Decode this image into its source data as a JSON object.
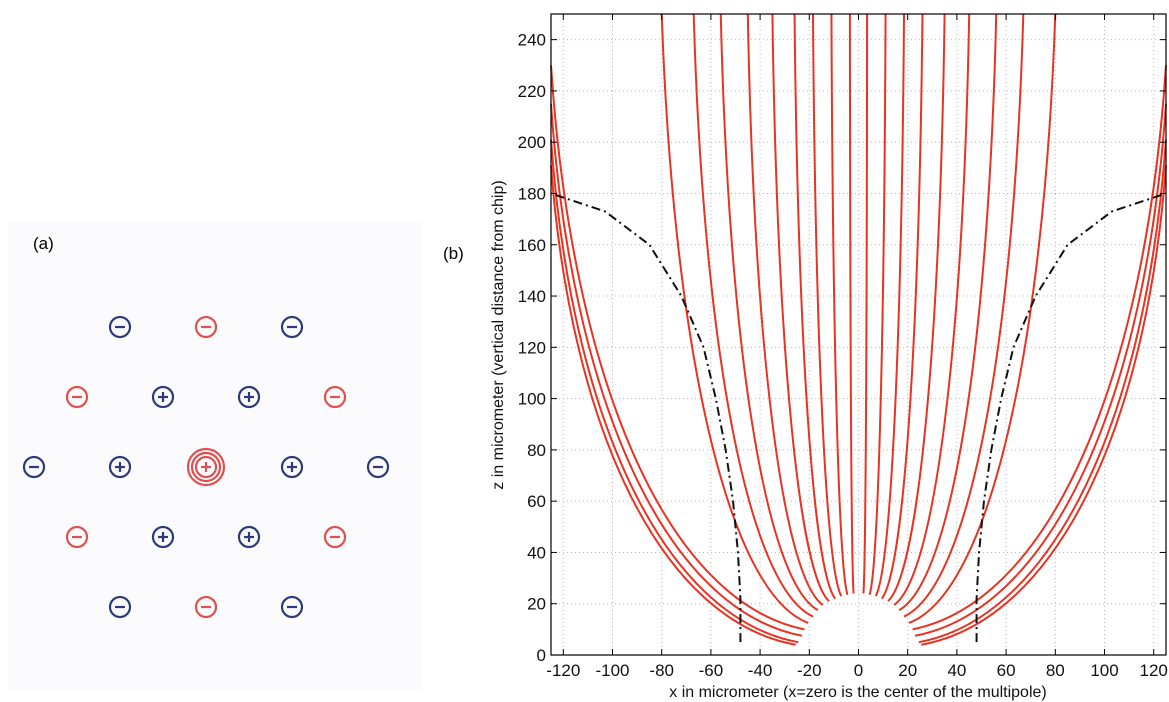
{
  "panel_a": {
    "label": "(a)",
    "colors": {
      "blue": "#2e3a78",
      "red": "#e0504e"
    },
    "electrodes": [
      {
        "sign": "−",
        "color": "blue",
        "col": 1,
        "row": 0
      },
      {
        "sign": "−",
        "color": "red",
        "col": 2,
        "row": 0
      },
      {
        "sign": "−",
        "color": "blue",
        "col": 3,
        "row": 0
      },
      {
        "sign": "−",
        "color": "red",
        "col": 0.5,
        "row": 1
      },
      {
        "sign": "+",
        "color": "blue",
        "col": 1.5,
        "row": 1
      },
      {
        "sign": "+",
        "color": "blue",
        "col": 2.5,
        "row": 1
      },
      {
        "sign": "−",
        "color": "red",
        "col": 3.5,
        "row": 1
      },
      {
        "sign": "−",
        "color": "blue",
        "col": 0,
        "row": 2
      },
      {
        "sign": "+",
        "color": "blue",
        "col": 1,
        "row": 2
      },
      {
        "sign": "+",
        "color": "red",
        "col": 2,
        "row": 2,
        "center": true
      },
      {
        "sign": "+",
        "color": "blue",
        "col": 3,
        "row": 2
      },
      {
        "sign": "−",
        "color": "blue",
        "col": 4,
        "row": 2
      },
      {
        "sign": "−",
        "color": "red",
        "col": 0.5,
        "row": 3
      },
      {
        "sign": "+",
        "color": "blue",
        "col": 1.5,
        "row": 3
      },
      {
        "sign": "+",
        "color": "blue",
        "col": 2.5,
        "row": 3
      },
      {
        "sign": "−",
        "color": "red",
        "col": 3.5,
        "row": 3
      },
      {
        "sign": "−",
        "color": "blue",
        "col": 1,
        "row": 4
      },
      {
        "sign": "−",
        "color": "red",
        "col": 2,
        "row": 4
      },
      {
        "sign": "−",
        "color": "blue",
        "col": 3,
        "row": 4
      }
    ]
  },
  "panel_b": {
    "label": "(b)"
  },
  "chart_data": {
    "type": "line",
    "xlabel": "x in micrometer (x=zero is the center of the multipole)",
    "ylabel": "z in micrometer (vertical distance from chip)",
    "xlim": [
      -125,
      125
    ],
    "ylim": [
      0,
      250
    ],
    "xticks": [
      -120,
      -100,
      -80,
      -60,
      -40,
      -20,
      0,
      20,
      40,
      60,
      80,
      100,
      120
    ],
    "yticks": [
      0,
      20,
      40,
      60,
      80,
      100,
      120,
      140,
      160,
      180,
      200,
      220,
      240
    ],
    "grid": true,
    "line_color": "#e83222",
    "boundary_color": "#111111",
    "field_lines": {
      "count_per_side": 13,
      "start_points": [
        [
          2,
          24
        ],
        [
          4.5,
          23.5
        ],
        [
          7,
          23
        ],
        [
          9.5,
          22
        ],
        [
          12,
          21
        ],
        [
          14.5,
          19.5
        ],
        [
          16.5,
          17.5
        ],
        [
          18.5,
          15
        ],
        [
          20.5,
          12.5
        ],
        [
          22,
          10
        ],
        [
          23,
          7.5
        ],
        [
          24.5,
          5
        ],
        [
          25.5,
          4
        ]
      ],
      "end_points": [
        [
          3.5,
          250
        ],
        [
          11,
          250
        ],
        [
          18.5,
          250
        ],
        [
          26,
          250
        ],
        [
          35,
          250
        ],
        [
          45,
          250
        ],
        [
          56,
          250
        ],
        [
          67,
          250
        ],
        [
          80,
          250
        ],
        [
          125,
          230
        ],
        [
          125,
          215
        ],
        [
          125,
          201
        ],
        [
          125,
          191
        ]
      ],
      "mirrored": true
    },
    "boundary": {
      "style": "dash-dot",
      "points": [
        [
          48,
          5
        ],
        [
          48,
          22
        ],
        [
          49,
          40
        ],
        [
          51,
          60
        ],
        [
          54,
          80
        ],
        [
          58,
          100
        ],
        [
          63,
          120
        ],
        [
          72,
          140
        ],
        [
          85,
          160
        ],
        [
          103,
          173
        ],
        [
          125,
          180
        ]
      ],
      "mirrored": true
    }
  }
}
